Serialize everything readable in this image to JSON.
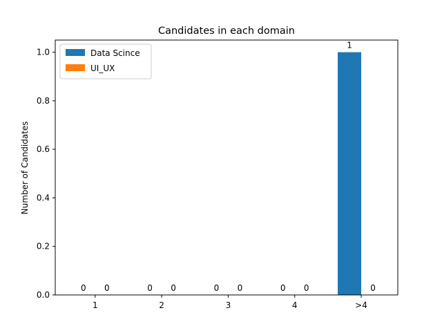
{
  "chart_data": {
    "type": "bar",
    "title": "Candidates in each domain",
    "xlabel": "",
    "ylabel": "Number of Candidates",
    "categories": [
      "1",
      "2",
      "3",
      "4",
      ">4"
    ],
    "series": [
      {
        "name": "Data Scince",
        "values": [
          0,
          0,
          0,
          0,
          1
        ],
        "color": "#1f77b4"
      },
      {
        "name": "UI_UX",
        "values": [
          0,
          0,
          0,
          0,
          0
        ],
        "color": "#ff7f0e"
      }
    ],
    "ylim": [
      0,
      1.05
    ],
    "yticks": [
      "0.0",
      "0.2",
      "0.4",
      "0.6",
      "0.8",
      "1.0"
    ],
    "data_labels": true,
    "grid": false,
    "legend_position": "upper-left"
  }
}
